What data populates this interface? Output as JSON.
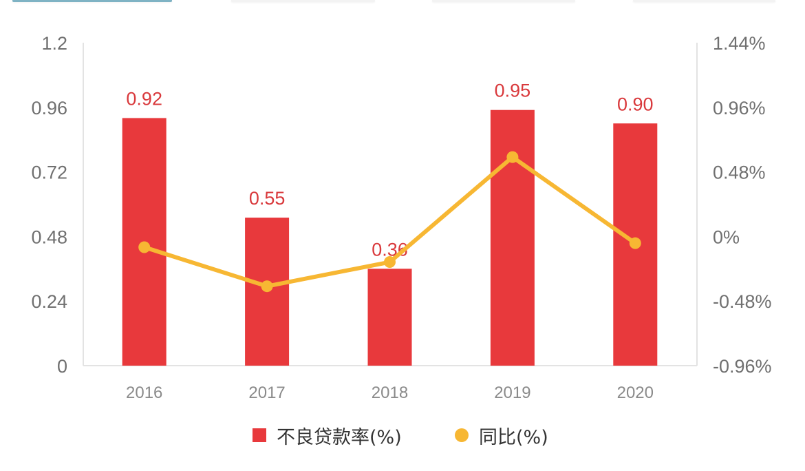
{
  "tabs": [
    {
      "active": true
    },
    {
      "active": false
    },
    {
      "active": false
    },
    {
      "active": false
    }
  ],
  "colors": {
    "bar": "#e8393c",
    "bar_label": "#d9393c",
    "line": "#f7b733",
    "axis_text": "#707070",
    "x_text": "#8a8a8a",
    "axis_line": "#e3e3e3",
    "active_tab": "#7fb3c4"
  },
  "chart_data": {
    "type": "bar",
    "title": "",
    "categories": [
      "2016",
      "2017",
      "2018",
      "2019",
      "2020"
    ],
    "series": [
      {
        "name": "不良贷款率(%)",
        "type": "bar",
        "axis": "left",
        "values": [
          0.92,
          0.55,
          0.36,
          0.95,
          0.9
        ],
        "labels": [
          "0.92",
          "0.55",
          "0.36",
          "0.95",
          "0.90"
        ]
      },
      {
        "name": "同比(%)",
        "type": "line",
        "axis": "right",
        "values": [
          -0.08,
          -0.37,
          -0.19,
          0.59,
          -0.05
        ]
      }
    ],
    "left_axis": {
      "ticks": [
        "0",
        "0.24",
        "0.48",
        "0.72",
        "0.96",
        "1.2"
      ],
      "ylim": [
        0,
        1.2
      ]
    },
    "right_axis": {
      "ticks": [
        "-0.96%",
        "-0.48%",
        "0%",
        "0.48%",
        "0.96%",
        "1.44%"
      ],
      "ylim": [
        -0.96,
        1.44
      ]
    },
    "xlabel": "",
    "ylabel": "",
    "grid": false,
    "legend_position": "bottom"
  },
  "legend": {
    "items": [
      {
        "label": "不良贷款率(%)",
        "shape": "square"
      },
      {
        "label": "同比(%)",
        "shape": "circle"
      }
    ]
  }
}
